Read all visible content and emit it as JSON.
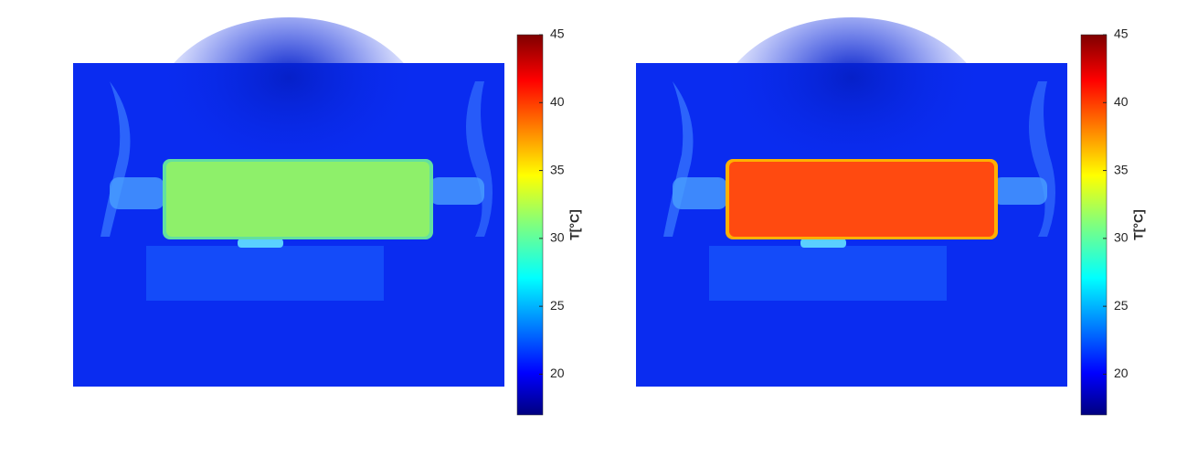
{
  "panels": [
    {
      "colorbar": {
        "label": "T[°C]",
        "lim": [
          17,
          45
        ],
        "ticks": [
          20,
          25,
          30,
          35,
          40,
          45
        ]
      }
    },
    {
      "colorbar": {
        "label": "T[°C]",
        "lim": [
          17,
          45
        ],
        "ticks": [
          20,
          25,
          30,
          35,
          40,
          45
        ]
      }
    }
  ]
}
